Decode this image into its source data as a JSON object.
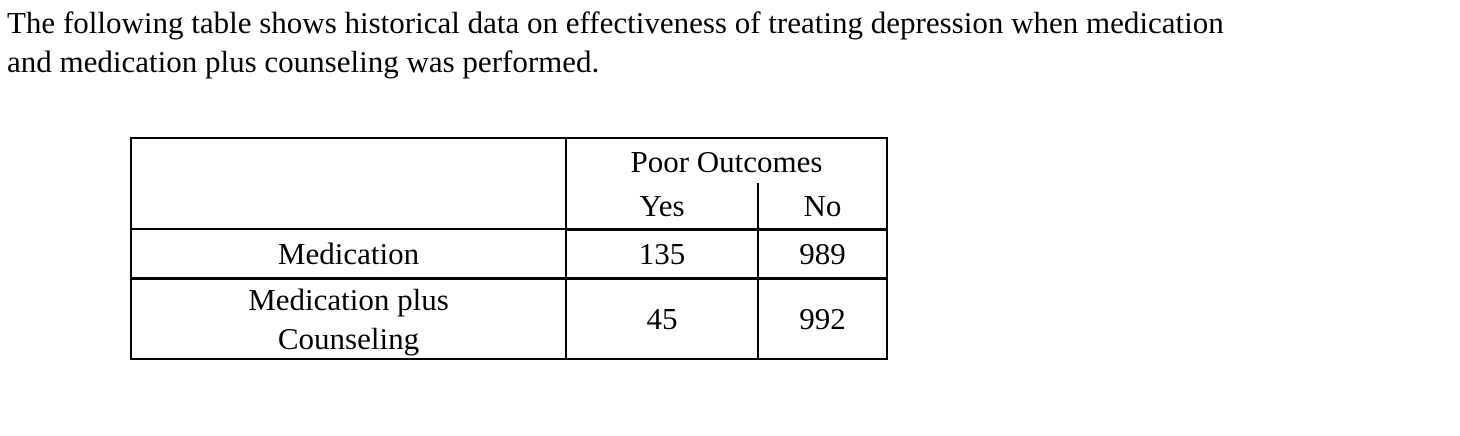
{
  "page": {
    "background": "#ffffff",
    "text_color": "#000000",
    "border_color": "#000000"
  },
  "paragraph": {
    "text": "The following table shows historical data on effectiveness of treating depression when medication\nand medication plus counseling was performed."
  },
  "table": {
    "header": {
      "group_label": "Poor Outcomes",
      "columns": [
        "Yes",
        "No"
      ]
    },
    "rows": [
      {
        "label": "Medication",
        "yes": "135",
        "no": "989"
      },
      {
        "label": "Medication plus\nCounseling",
        "yes": "45",
        "no": "992"
      }
    ]
  },
  "chart_data": {
    "type": "table",
    "title": "Poor Outcomes",
    "categories": [
      "Medication",
      "Medication plus Counseling"
    ],
    "series": [
      {
        "name": "Yes",
        "values": [
          135,
          45
        ]
      },
      {
        "name": "No",
        "values": [
          989,
          992
        ]
      }
    ]
  }
}
